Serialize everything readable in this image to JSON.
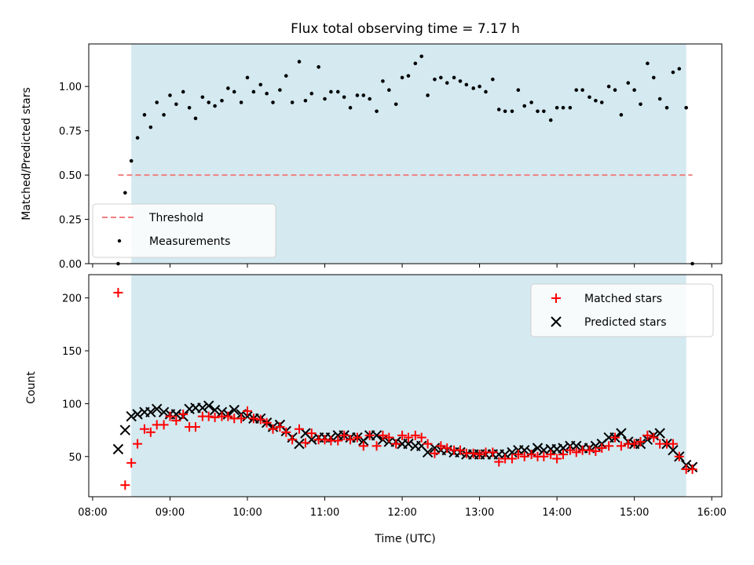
{
  "chart_data": [
    {
      "type": "scatter",
      "title": "Flux total observing time = 7.17 h",
      "xlabel": "",
      "ylabel": "Matched/Predicted stars",
      "ylim": [
        0,
        1.24
      ],
      "xlim_hours": [
        7.95,
        16.13
      ],
      "yticks": [
        0.0,
        0.25,
        0.5,
        0.75,
        1.0
      ],
      "ytick_labels": [
        "0.00",
        "0.25",
        "0.50",
        "0.75",
        "1.00"
      ],
      "observing_window_hours": [
        8.5,
        15.67
      ],
      "shade_color": "#d4e9f0",
      "threshold": {
        "label": "Threshold",
        "value": 0.5,
        "x_range_hours": [
          8.33,
          15.75
        ],
        "color": "#f08080"
      },
      "measurements": {
        "label": "Measurements",
        "color": "#000000",
        "x_hours": [
          8.33,
          8.42,
          8.5,
          8.58,
          8.67,
          8.75,
          8.83,
          8.92,
          9.0,
          9.08,
          9.17,
          9.25,
          9.33,
          9.42,
          9.5,
          9.58,
          9.67,
          9.75,
          9.83,
          9.92,
          10.0,
          10.08,
          10.17,
          10.25,
          10.33,
          10.42,
          10.5,
          10.58,
          10.67,
          10.75,
          10.83,
          10.92,
          11.0,
          11.08,
          11.17,
          11.25,
          11.33,
          11.42,
          11.5,
          11.58,
          11.67,
          11.75,
          11.83,
          11.92,
          12.0,
          12.08,
          12.17,
          12.25,
          12.33,
          12.42,
          12.5,
          12.58,
          12.67,
          12.75,
          12.83,
          12.92,
          13.0,
          13.08,
          13.17,
          13.25,
          13.33,
          13.42,
          13.5,
          13.58,
          13.67,
          13.75,
          13.83,
          13.92,
          14.0,
          14.08,
          14.17,
          14.25,
          14.33,
          14.42,
          14.5,
          14.58,
          14.67,
          14.75,
          14.83,
          14.92,
          15.0,
          15.08,
          15.17,
          15.25,
          15.33,
          15.42,
          15.5,
          15.58,
          15.67,
          15.75
        ],
        "y": [
          0.0,
          0.4,
          0.58,
          0.71,
          0.84,
          0.77,
          0.91,
          0.84,
          0.95,
          0.9,
          0.97,
          0.88,
          0.82,
          0.94,
          0.91,
          0.89,
          0.92,
          0.99,
          0.97,
          0.91,
          1.05,
          0.97,
          1.01,
          0.96,
          0.91,
          0.98,
          1.06,
          0.91,
          1.14,
          0.92,
          0.96,
          1.11,
          0.93,
          0.97,
          0.97,
          0.94,
          0.88,
          0.95,
          0.95,
          0.93,
          0.86,
          1.03,
          0.98,
          0.9,
          1.05,
          1.06,
          1.13,
          1.17,
          0.95,
          1.04,
          1.05,
          1.02,
          1.05,
          1.03,
          1.01,
          0.99,
          1.0,
          0.97,
          1.04,
          0.87,
          0.86,
          0.86,
          0.98,
          0.89,
          0.91,
          0.86,
          0.86,
          0.81,
          0.88,
          0.88,
          0.88,
          0.98,
          0.98,
          0.94,
          0.92,
          0.91,
          1.0,
          0.98,
          0.84,
          1.02,
          0.98,
          0.9,
          1.13,
          1.05,
          0.93,
          0.88,
          1.08,
          1.1,
          0.88,
          0.0
        ]
      }
    },
    {
      "type": "scatter",
      "title": "",
      "xlabel": "Time (UTC)",
      "ylabel": "Count",
      "ylim": [
        12,
        222
      ],
      "xlim_hours": [
        7.95,
        16.13
      ],
      "yticks": [
        50,
        100,
        150,
        200
      ],
      "ytick_labels": [
        "50",
        "100",
        "150",
        "200"
      ],
      "xticks_hours": [
        8,
        9,
        10,
        11,
        12,
        13,
        14,
        15,
        16
      ],
      "xtick_labels": [
        "08:00",
        "09:00",
        "10:00",
        "11:00",
        "12:00",
        "13:00",
        "14:00",
        "15:00",
        "16:00"
      ],
      "observing_window_hours": [
        8.5,
        15.67
      ],
      "shade_color": "#d4e9f0",
      "series": [
        {
          "name": "Matched stars",
          "marker": "plus",
          "color": "#ff0000",
          "x_hours": [
            8.33,
            8.42,
            8.5,
            8.58,
            8.67,
            8.75,
            8.83,
            8.92,
            9.0,
            9.08,
            9.17,
            9.25,
            9.33,
            9.42,
            9.5,
            9.58,
            9.67,
            9.75,
            9.83,
            9.92,
            10.0,
            10.08,
            10.17,
            10.25,
            10.33,
            10.42,
            10.5,
            10.58,
            10.67,
            10.75,
            10.83,
            10.92,
            11.0,
            11.08,
            11.17,
            11.25,
            11.33,
            11.42,
            11.5,
            11.58,
            11.67,
            11.75,
            11.83,
            11.92,
            12.0,
            12.08,
            12.17,
            12.25,
            12.33,
            12.42,
            12.5,
            12.58,
            12.67,
            12.75,
            12.83,
            12.92,
            13.0,
            13.08,
            13.17,
            13.25,
            13.33,
            13.42,
            13.5,
            13.58,
            13.67,
            13.75,
            13.83,
            13.92,
            14.0,
            14.08,
            14.17,
            14.25,
            14.33,
            14.42,
            14.5,
            14.58,
            14.67,
            14.75,
            14.83,
            14.92,
            15.0,
            15.08,
            15.17,
            15.25,
            15.33,
            15.42,
            15.5,
            15.58,
            15.67,
            15.75
          ],
          "values": [
            205,
            23,
            44,
            62,
            76,
            73,
            80,
            80,
            88,
            84,
            90,
            78,
            78,
            88,
            88,
            87,
            88,
            88,
            86,
            86,
            93,
            86,
            85,
            82,
            76,
            78,
            73,
            66,
            76,
            63,
            72,
            66,
            66,
            65,
            65,
            70,
            66,
            68,
            60,
            70,
            60,
            70,
            68,
            62,
            70,
            68,
            70,
            68,
            62,
            53,
            60,
            58,
            56,
            56,
            53,
            53,
            52,
            54,
            54,
            45,
            48,
            48,
            52,
            50,
            52,
            50,
            50,
            52,
            48,
            52,
            56,
            54,
            56,
            56,
            55,
            58,
            60,
            68,
            60,
            62,
            62,
            64,
            70,
            68,
            62,
            62,
            62,
            50,
            38,
            38
          ]
        },
        {
          "name": "Predicted stars",
          "marker": "x",
          "color": "#000000",
          "x_hours": [
            8.33,
            8.42,
            8.5,
            8.58,
            8.67,
            8.75,
            8.83,
            8.92,
            9.0,
            9.08,
            9.17,
            9.25,
            9.33,
            9.42,
            9.5,
            9.58,
            9.67,
            9.75,
            9.83,
            9.92,
            10.0,
            10.08,
            10.17,
            10.25,
            10.33,
            10.42,
            10.5,
            10.58,
            10.67,
            10.75,
            10.83,
            10.92,
            11.0,
            11.08,
            11.17,
            11.25,
            11.33,
            11.42,
            11.5,
            11.58,
            11.67,
            11.75,
            11.83,
            11.92,
            12.0,
            12.08,
            12.17,
            12.25,
            12.33,
            12.42,
            12.5,
            12.58,
            12.67,
            12.75,
            12.83,
            12.92,
            13.0,
            13.08,
            13.17,
            13.25,
            13.33,
            13.42,
            13.5,
            13.58,
            13.67,
            13.75,
            13.83,
            13.92,
            14.0,
            14.08,
            14.17,
            14.25,
            14.33,
            14.42,
            14.5,
            14.58,
            14.67,
            14.75,
            14.83,
            14.92,
            15.0,
            15.08,
            15.17,
            15.25,
            15.33,
            15.42,
            15.5,
            15.58,
            15.67,
            15.75
          ],
          "values": [
            57,
            75,
            88,
            90,
            92,
            92,
            95,
            92,
            90,
            90,
            88,
            95,
            96,
            96,
            98,
            94,
            92,
            90,
            94,
            90,
            88,
            86,
            86,
            82,
            78,
            80,
            74,
            68,
            62,
            72,
            66,
            68,
            68,
            68,
            70,
            70,
            68,
            68,
            65,
            70,
            70,
            66,
            64,
            64,
            62,
            62,
            60,
            60,
            54,
            58,
            56,
            56,
            54,
            54,
            52,
            52,
            52,
            52,
            52,
            52,
            52,
            54,
            56,
            56,
            54,
            58,
            56,
            57,
            57,
            58,
            60,
            60,
            58,
            58,
            60,
            62,
            68,
            68,
            72,
            64,
            62,
            62,
            66,
            70,
            72,
            62,
            56,
            50,
            42,
            40
          ]
        }
      ]
    }
  ]
}
